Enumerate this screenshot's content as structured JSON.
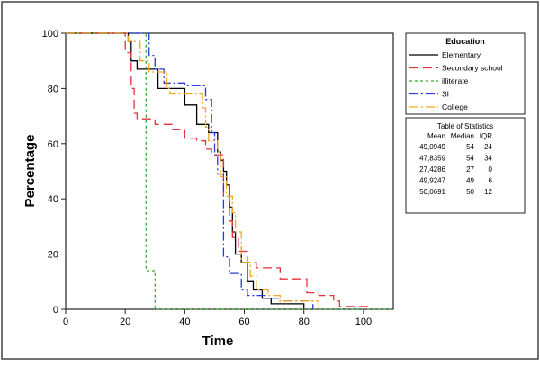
{
  "chart_data": {
    "type": "line",
    "subtype": "step",
    "xlabel": "Time",
    "ylabel": "Percentage",
    "xlim": [
      0,
      110
    ],
    "ylim": [
      0,
      100
    ],
    "xticks": [
      "0",
      "20",
      "40",
      "60",
      "80",
      "100"
    ],
    "yticks": [
      "0",
      "20",
      "40",
      "60",
      "80",
      "100"
    ],
    "grid": false,
    "legend": {
      "title": "Education",
      "placement": "right-top",
      "entries": [
        "Elementary",
        "Secondary school",
        "illiterate",
        "SI",
        "College"
      ]
    },
    "series": [
      {
        "name": "Elementary",
        "color": "#000000",
        "dash": "solid",
        "points": [
          [
            0,
            100
          ],
          [
            21,
            100
          ],
          [
            21,
            97
          ],
          [
            22,
            97
          ],
          [
            22,
            90
          ],
          [
            24,
            90
          ],
          [
            24,
            87
          ],
          [
            31,
            87
          ],
          [
            31,
            80
          ],
          [
            40,
            80
          ],
          [
            40,
            74
          ],
          [
            44,
            74
          ],
          [
            44,
            67
          ],
          [
            48,
            67
          ],
          [
            48,
            64
          ],
          [
            51,
            64
          ],
          [
            51,
            57
          ],
          [
            52,
            57
          ],
          [
            52,
            54
          ],
          [
            53,
            54
          ],
          [
            53,
            50
          ],
          [
            54,
            50
          ],
          [
            54,
            45
          ],
          [
            55,
            45
          ],
          [
            55,
            37
          ],
          [
            56,
            37
          ],
          [
            56,
            28
          ],
          [
            57,
            28
          ],
          [
            57,
            20
          ],
          [
            59,
            20
          ],
          [
            59,
            17
          ],
          [
            61,
            17
          ],
          [
            61,
            10
          ],
          [
            63,
            10
          ],
          [
            63,
            7
          ],
          [
            66,
            7
          ],
          [
            66,
            4
          ],
          [
            69,
            4
          ],
          [
            69,
            2
          ],
          [
            80,
            2
          ],
          [
            80,
            0
          ]
        ]
      },
      {
        "name": "Secondary school",
        "color": "#e8303a",
        "dash": "10,5",
        "points": [
          [
            0,
            100
          ],
          [
            20,
            100
          ],
          [
            20,
            93
          ],
          [
            22,
            93
          ],
          [
            22,
            80
          ],
          [
            23,
            80
          ],
          [
            23,
            71
          ],
          [
            24,
            71
          ],
          [
            24,
            69
          ],
          [
            30,
            69
          ],
          [
            30,
            67
          ],
          [
            36,
            67
          ],
          [
            36,
            65
          ],
          [
            40,
            65
          ],
          [
            40,
            62
          ],
          [
            44,
            62
          ],
          [
            44,
            61
          ],
          [
            47,
            61
          ],
          [
            47,
            58
          ],
          [
            49,
            58
          ],
          [
            49,
            56
          ],
          [
            53,
            56
          ],
          [
            53,
            41
          ],
          [
            55,
            41
          ],
          [
            55,
            32
          ],
          [
            56,
            32
          ],
          [
            56,
            26
          ],
          [
            58,
            26
          ],
          [
            58,
            21
          ],
          [
            61,
            21
          ],
          [
            61,
            17
          ],
          [
            64,
            17
          ],
          [
            64,
            15
          ],
          [
            72,
            15
          ],
          [
            72,
            11
          ],
          [
            81,
            11
          ],
          [
            81,
            6
          ],
          [
            85,
            6
          ],
          [
            85,
            5
          ],
          [
            90,
            5
          ],
          [
            90,
            3
          ],
          [
            92,
            3
          ],
          [
            92,
            1
          ],
          [
            102,
            1
          ],
          [
            102,
            0
          ]
        ]
      },
      {
        "name": "illiterate",
        "color": "#33aa33",
        "dash": "3,3",
        "points": [
          [
            0,
            100
          ],
          [
            27,
            100
          ],
          [
            27,
            14
          ],
          [
            30,
            14
          ],
          [
            30,
            0
          ],
          [
            110,
            0
          ]
        ]
      },
      {
        "name": "SI",
        "color": "#2a3bd6",
        "dash": "10,3,2,3",
        "points": [
          [
            0,
            100
          ],
          [
            28,
            100
          ],
          [
            28,
            92
          ],
          [
            30,
            92
          ],
          [
            30,
            87
          ],
          [
            33,
            87
          ],
          [
            33,
            82
          ],
          [
            40,
            82
          ],
          [
            40,
            81
          ],
          [
            47,
            81
          ],
          [
            47,
            76
          ],
          [
            49,
            76
          ],
          [
            49,
            64
          ],
          [
            50,
            64
          ],
          [
            50,
            56
          ],
          [
            51,
            56
          ],
          [
            51,
            49
          ],
          [
            53,
            49
          ],
          [
            53,
            19
          ],
          [
            55,
            19
          ],
          [
            55,
            13
          ],
          [
            59,
            13
          ],
          [
            59,
            7
          ],
          [
            61,
            7
          ],
          [
            61,
            5
          ],
          [
            67,
            5
          ],
          [
            67,
            4
          ],
          [
            72,
            4
          ],
          [
            72,
            3
          ],
          [
            83,
            3
          ],
          [
            83,
            0
          ]
        ]
      },
      {
        "name": "College",
        "color": "#f5a623",
        "dash": "10,3,2,3",
        "points": [
          [
            0,
            100
          ],
          [
            21,
            100
          ],
          [
            21,
            97
          ],
          [
            25,
            97
          ],
          [
            25,
            90
          ],
          [
            28,
            90
          ],
          [
            28,
            86
          ],
          [
            34,
            86
          ],
          [
            34,
            80
          ],
          [
            35,
            80
          ],
          [
            35,
            78
          ],
          [
            46,
            78
          ],
          [
            46,
            73
          ],
          [
            47,
            73
          ],
          [
            47,
            66
          ],
          [
            48,
            66
          ],
          [
            48,
            61
          ],
          [
            51,
            61
          ],
          [
            51,
            57
          ],
          [
            52,
            57
          ],
          [
            52,
            48
          ],
          [
            54,
            48
          ],
          [
            54,
            41
          ],
          [
            56,
            41
          ],
          [
            56,
            35
          ],
          [
            57,
            35
          ],
          [
            57,
            28
          ],
          [
            59,
            28
          ],
          [
            59,
            17
          ],
          [
            62,
            17
          ],
          [
            62,
            12
          ],
          [
            64,
            12
          ],
          [
            64,
            7
          ],
          [
            68,
            7
          ],
          [
            68,
            5
          ],
          [
            72,
            5
          ],
          [
            72,
            3
          ],
          [
            85,
            3
          ],
          [
            85,
            0
          ]
        ]
      }
    ]
  },
  "stats_table": {
    "title": "Table of Statistics",
    "headers": [
      "Mean",
      "Median",
      "IQR"
    ],
    "rows": [
      [
        "49,0949",
        "54",
        "24"
      ],
      [
        "47,8359",
        "54",
        "34"
      ],
      [
        "27,4286",
        "27",
        "0"
      ],
      [
        "49,9247",
        "49",
        "6"
      ],
      [
        "50,0691",
        "50",
        "12"
      ]
    ]
  }
}
